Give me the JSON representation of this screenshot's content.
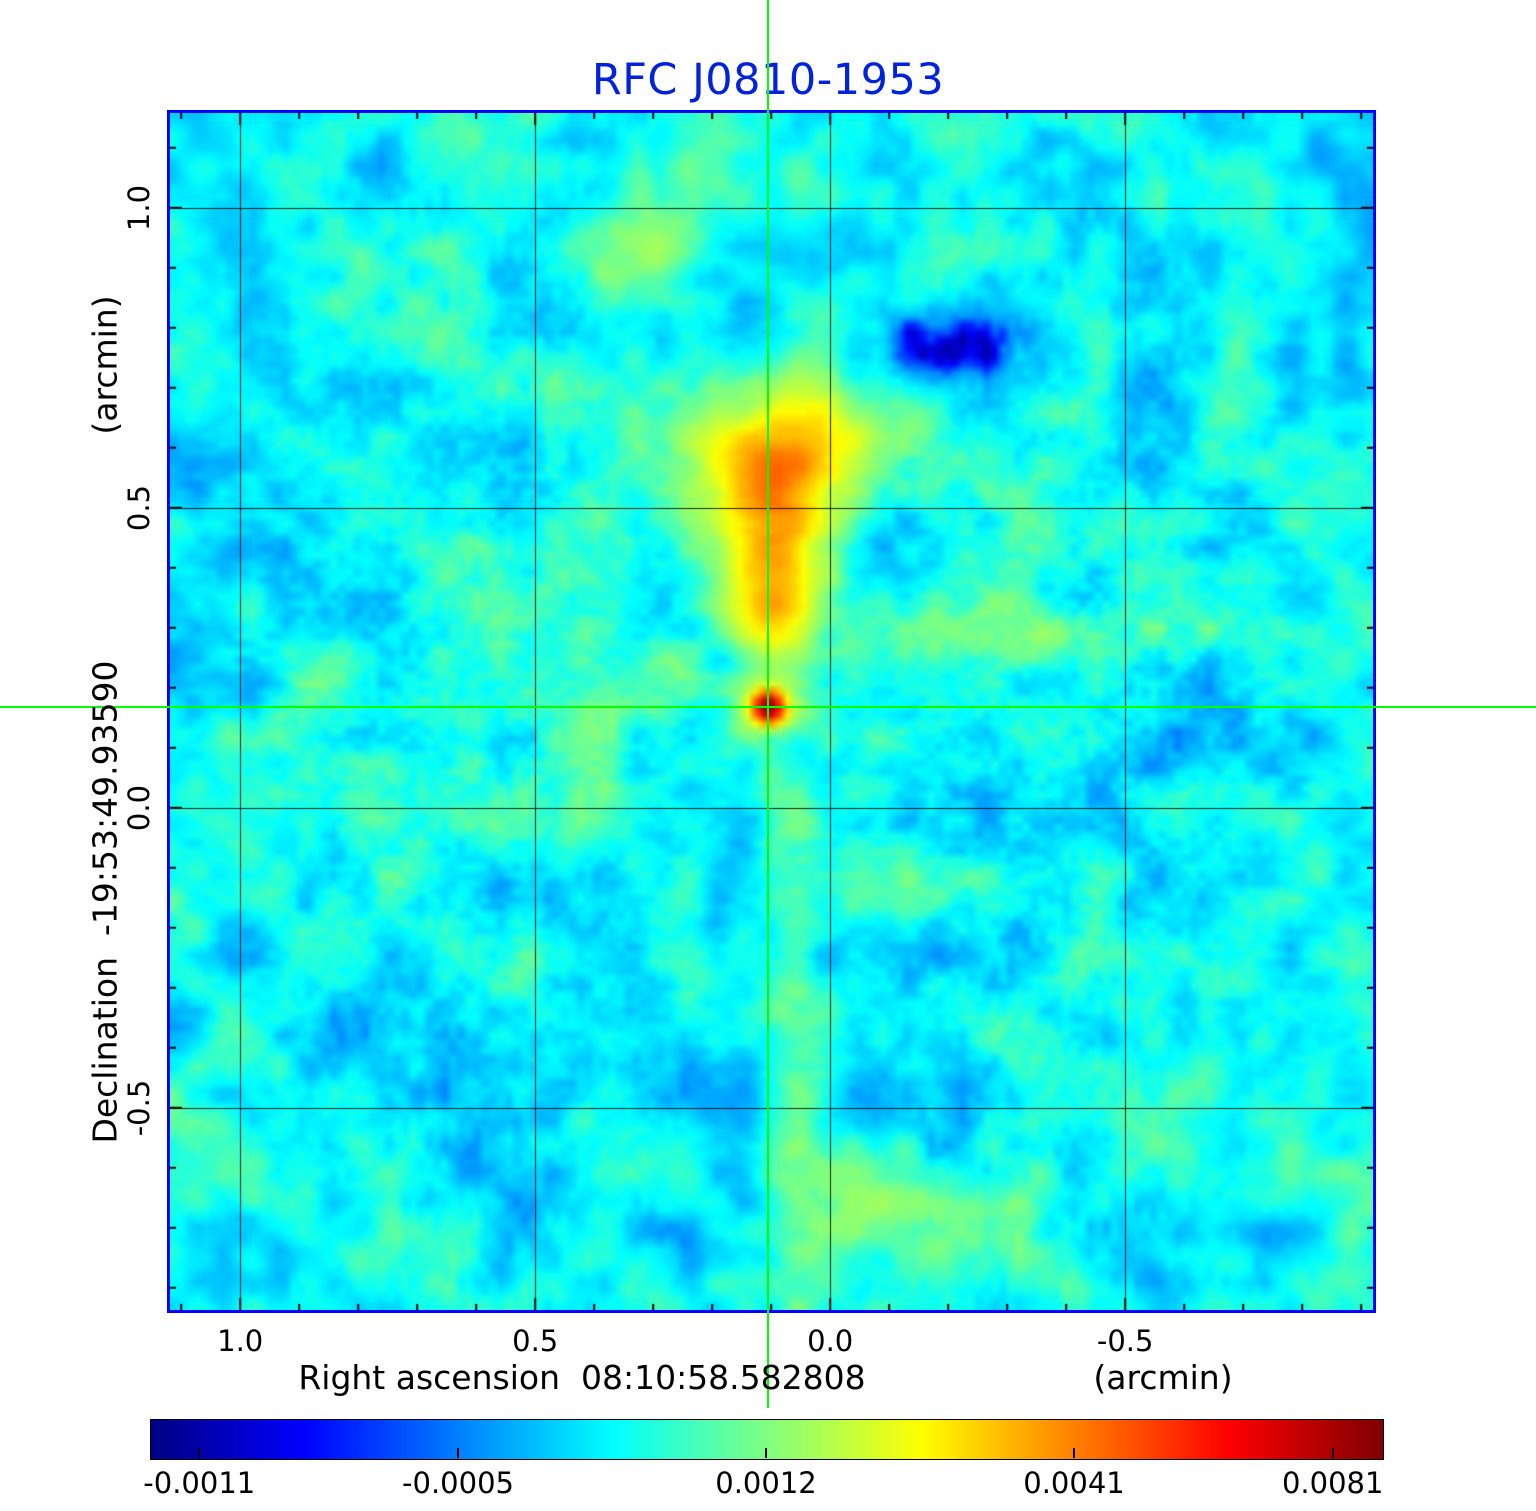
{
  "chart_data": {
    "type": "heatmap",
    "title": "RFC J0810-1953",
    "title_color": "#0022dd",
    "frame_color": "#0000ff",
    "xlabel": "Right ascension  08:10:58.582808",
    "xlabel_unit": "(arcmin)",
    "ylabel": "Declination  -19:53:49.93590",
    "ylabel_unit": "(arcmin)",
    "x_range": [
      1.119,
      -0.92
    ],
    "y_range": [
      1.158,
      -0.837
    ],
    "x_ticks": [
      {
        "label": "1.0",
        "value": 1.0
      },
      {
        "label": "0.5",
        "value": 0.5
      },
      {
        "label": "0.0",
        "value": 0.0
      },
      {
        "label": "-0.5",
        "value": -0.5
      }
    ],
    "y_ticks": [
      {
        "label": "1.0",
        "value": 1.0
      },
      {
        "label": "0.5",
        "value": 0.5
      },
      {
        "label": "0.0",
        "value": 0.0
      },
      {
        "label": "-0.5",
        "value": -0.5
      }
    ],
    "grid": true,
    "legend_position": "none",
    "crosshair": {
      "color": "#00ff00",
      "ra_offset_arcmin": 0.105,
      "dec_offset_arcmin": 0.168
    },
    "colorbar_ticks": [
      {
        "label": "-0.0011",
        "value": -0.0011,
        "pos": 0.04
      },
      {
        "label": "-0.0005",
        "value": -0.0005,
        "pos": 0.25
      },
      {
        "label": "0.0012",
        "value": 0.0012,
        "pos": 0.5
      },
      {
        "label": "0.0041",
        "value": 0.0041,
        "pos": 0.75
      },
      {
        "label": "0.0081",
        "value": 0.0081,
        "pos": 0.96
      }
    ],
    "colormap": "jet",
    "colormap_stops": [
      [
        0.0,
        [
          0,
          0,
          131
        ]
      ],
      [
        0.125,
        [
          0,
          0,
          255
        ]
      ],
      [
        0.375,
        [
          0,
          255,
          255
        ]
      ],
      [
        0.625,
        [
          255,
          255,
          0
        ]
      ],
      [
        0.875,
        [
          255,
          0,
          0
        ]
      ],
      [
        1.0,
        [
          128,
          0,
          0
        ]
      ]
    ],
    "scale_anchors": [
      [
        -0.0016,
        0.0
      ],
      [
        -0.0011,
        0.04
      ],
      [
        -0.0005,
        0.25
      ],
      [
        0.0012,
        0.5
      ],
      [
        0.0041,
        0.75
      ],
      [
        0.0081,
        0.96
      ],
      [
        0.0095,
        1.0
      ]
    ],
    "value_min": -0.0011,
    "value_peak": 0.0081,
    "noise_base": 0.0004,
    "noise_octaves": [
      {
        "cells": 8,
        "amp": 0.00018,
        "seed": 7
      },
      {
        "cells": 18,
        "amp": 0.00045,
        "seed": 11
      },
      {
        "cells": 45,
        "amp": 0.00035,
        "seed": 23
      },
      {
        "cells": 150,
        "amp": 0.0002,
        "seed": 37
      }
    ],
    "sources": [
      {
        "name": "compact-core",
        "ra": 0.105,
        "dec": 0.168,
        "sx": 0.018,
        "sy": 0.018,
        "amp": 0.0075
      },
      {
        "name": "core-halo",
        "ra": 0.105,
        "dec": 0.168,
        "sx": 0.05,
        "sy": 0.04,
        "amp": 0.0012
      },
      {
        "name": "jet-bridge",
        "ra": 0.1,
        "dec": 0.3,
        "sx": 0.045,
        "sy": 0.07,
        "amp": 0.0013
      },
      {
        "name": "extended-lobe-main",
        "ra": 0.1,
        "dec": 0.43,
        "sx": 0.06,
        "sy": 0.09,
        "amp": 0.0028
      },
      {
        "name": "extended-lobe-top",
        "ra": 0.08,
        "dec": 0.57,
        "sx": 0.1,
        "sy": 0.07,
        "amp": 0.0022
      },
      {
        "name": "lobe-top-spread",
        "ra": 0.04,
        "dec": 0.64,
        "sx": 0.13,
        "sy": 0.05,
        "amp": 0.001
      },
      {
        "name": "negative-patch",
        "ra": -0.2,
        "dec": 0.77,
        "sx": 0.08,
        "sy": 0.045,
        "amp": -0.0016
      },
      {
        "name": "faint-south-plume",
        "ra": 0.06,
        "dec": -0.3,
        "sx": 0.035,
        "sy": 0.4,
        "amp": 0.0005
      },
      {
        "name": "faint-east-band",
        "ra": -0.35,
        "dec": 0.29,
        "sx": 0.3,
        "sy": 0.035,
        "amp": 0.0007
      },
      {
        "name": "faint-bottom-patch",
        "ra": -0.12,
        "dec": -0.67,
        "sx": 0.12,
        "sy": 0.07,
        "amp": 0.0008
      },
      {
        "name": "faint-north-patch",
        "ra": 0.32,
        "dec": 0.93,
        "sx": 0.06,
        "sy": 0.06,
        "amp": 0.0009
      }
    ]
  }
}
